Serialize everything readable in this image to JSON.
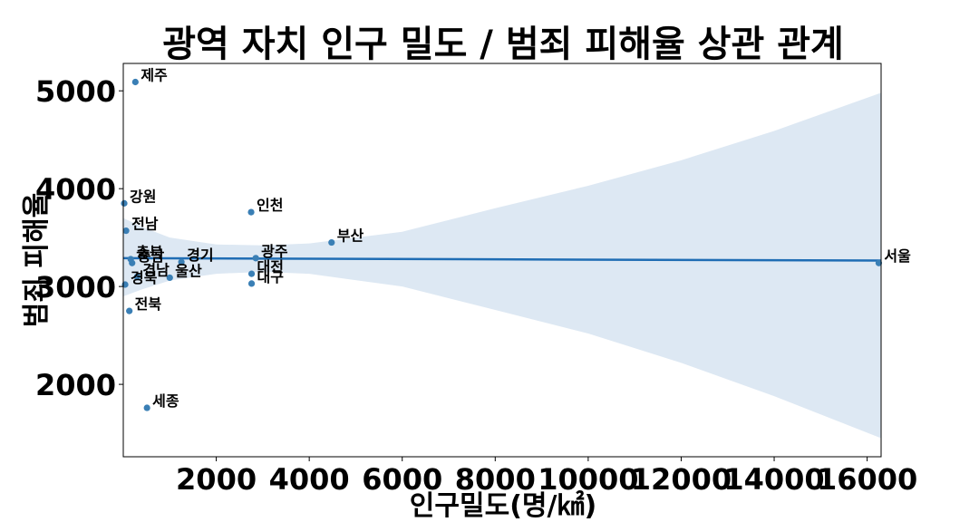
{
  "chart_data": {
    "type": "scatter",
    "title": "광역 자치 인구 밀도 / 범죄 피해율 상관 관계",
    "xlabel": "인구밀도(명/㎢)",
    "ylabel": "범죄 피해율",
    "xlim": [
      0,
      16300
    ],
    "ylim": [
      1260,
      5280
    ],
    "xticks": [
      2000,
      4000,
      6000,
      8000,
      10000,
      12000,
      14000,
      16000
    ],
    "yticks": [
      2000,
      3000,
      4000,
      5000
    ],
    "grid": false,
    "colors": {
      "point": "#3a7fb5",
      "regression_line": "#1f6db4",
      "confidence_band": "#dde8f3"
    },
    "points": [
      {
        "label": "서울",
        "x": 16250,
        "y": 3240
      },
      {
        "label": "부산",
        "x": 4480,
        "y": 3450
      },
      {
        "label": "대구",
        "x": 2760,
        "y": 3030
      },
      {
        "label": "인천",
        "x": 2750,
        "y": 3760
      },
      {
        "label": "광주",
        "x": 2850,
        "y": 3290
      },
      {
        "label": "대전",
        "x": 2760,
        "y": 3130
      },
      {
        "label": "울산",
        "x": 1000,
        "y": 3090
      },
      {
        "label": "세종",
        "x": 510,
        "y": 1760
      },
      {
        "label": "경기",
        "x": 1250,
        "y": 3250
      },
      {
        "label": "강원",
        "x": 20,
        "y": 3850
      },
      {
        "label": "충북",
        "x": 160,
        "y": 3280
      },
      {
        "label": "충남",
        "x": 190,
        "y": 3240
      },
      {
        "label": "전북",
        "x": 130,
        "y": 2750
      },
      {
        "label": "전남",
        "x": 60,
        "y": 3570
      },
      {
        "label": "경북",
        "x": 40,
        "y": 3020
      },
      {
        "label": "경남",
        "x": 300,
        "y": 3100
      },
      {
        "label": "제주",
        "x": 260,
        "y": 5090
      }
    ],
    "regression": {
      "x": [
        0,
        16300
      ],
      "y": [
        3290,
        3265
      ]
    },
    "confidence_band": {
      "x": [
        0,
        400,
        1000,
        2000,
        3000,
        4000,
        6000,
        8000,
        10000,
        12000,
        14000,
        16300
      ],
      "upper": [
        3700,
        3610,
        3500,
        3430,
        3420,
        3440,
        3560,
        3800,
        4030,
        4290,
        4590,
        4980
      ],
      "lower": [
        2900,
        2970,
        3060,
        3130,
        3150,
        3130,
        3000,
        2760,
        2520,
        2220,
        1880,
        1450
      ]
    }
  }
}
